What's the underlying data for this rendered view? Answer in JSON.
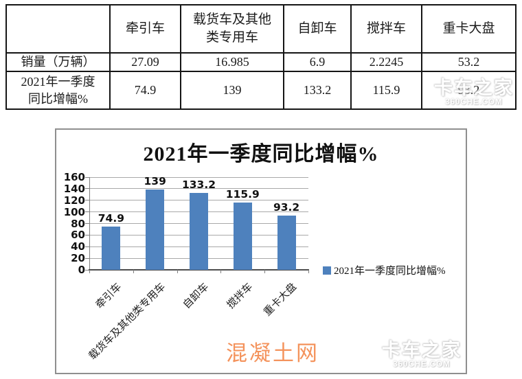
{
  "colors": {
    "bar": "#4E81BD",
    "grid": "#A8A8A8",
    "axis": "#4d4d4d",
    "table_border": "#151515",
    "chart_border": "#8F8F8F",
    "orange_watermark": "#F4935C"
  },
  "table": {
    "headers": [
      "",
      "牵引车",
      "载货车及其他\n类专用车",
      "自卸车",
      "搅拌车",
      "重卡大盘"
    ],
    "rows": [
      {
        "label": "销量（万辆）",
        "values": [
          "27.09",
          "16.985",
          "6.9",
          "2.2245",
          "53.2"
        ]
      },
      {
        "label": "2021年一季度\n同比增幅%",
        "values": [
          "74.9",
          "139",
          "133.2",
          "115.9",
          "93.2"
        ]
      }
    ]
  },
  "chart": {
    "title": "2021年一季度同比增幅%",
    "legend_label": "2021年一季度同比增幅%"
  },
  "chart_data": {
    "type": "bar",
    "title": "2021年一季度同比增幅%",
    "categories": [
      "牵引车",
      "载货车及其他类专用车",
      "自卸车",
      "搅拌车",
      "重卡大盘"
    ],
    "values": [
      74.9,
      139,
      133.2,
      115.9,
      93.2
    ],
    "xlabel": "",
    "ylabel": "",
    "ylim": [
      0,
      160
    ],
    "ytick_step": 20,
    "grid": true,
    "legend": [
      "2021年一季度同比增幅%"
    ],
    "legend_position": "right",
    "bar_color": "#4E81BD"
  },
  "watermarks": {
    "truckhome": {
      "line1": "卡车之家",
      "line2": "360CHE.COM"
    },
    "concrete": "混凝土网"
  }
}
